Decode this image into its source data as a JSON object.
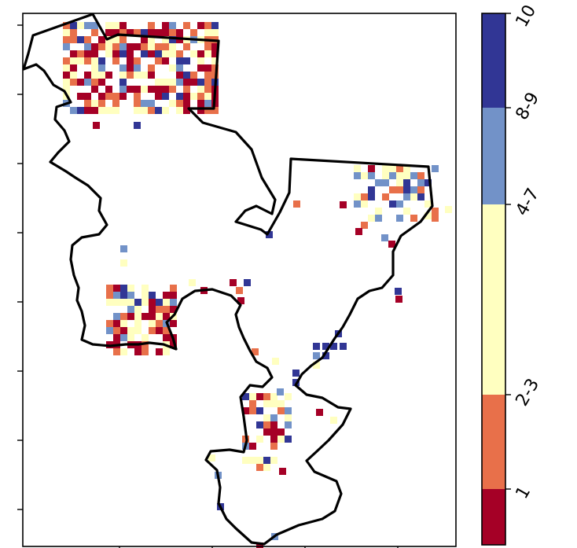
{
  "map": {
    "colorbar": {
      "classes": [
        {
          "label": "1",
          "color": "#a50026"
        },
        {
          "label": "2-3",
          "color": "#e8704a"
        },
        {
          "label": "4-7",
          "color": "#ffffc0"
        },
        {
          "label": "8-9",
          "color": "#7292c8"
        },
        {
          "label": "10",
          "color": "#313695"
        }
      ]
    },
    "x_tick_count": 4,
    "y_tick_count": 8
  }
}
